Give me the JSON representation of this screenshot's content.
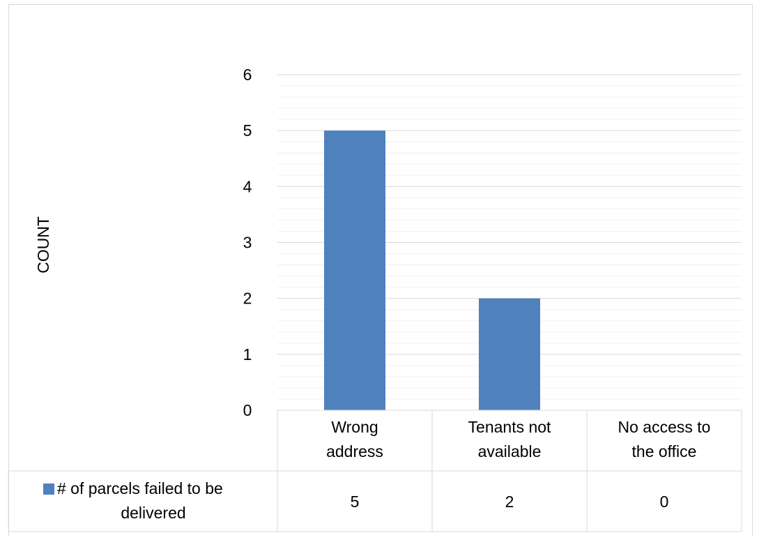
{
  "chart_data": {
    "type": "bar",
    "title": "",
    "xlabel": "",
    "ylabel": "COUNT",
    "ylim": [
      0,
      6
    ],
    "yticks": [
      "0",
      "1",
      "2",
      "3",
      "4",
      "5",
      "6"
    ],
    "categories": [
      [
        "Wrong",
        "address"
      ],
      [
        "Tenants not",
        "available"
      ],
      [
        "No access to",
        "the office"
      ]
    ],
    "series": [
      {
        "name": [
          "# of parcels failed to be",
          "delivered"
        ],
        "values": [
          5,
          2,
          0
        ],
        "value_labels": [
          "5",
          "2",
          "0"
        ],
        "color": "#4f81bd"
      }
    ],
    "grid": true,
    "legend": "data table"
  }
}
